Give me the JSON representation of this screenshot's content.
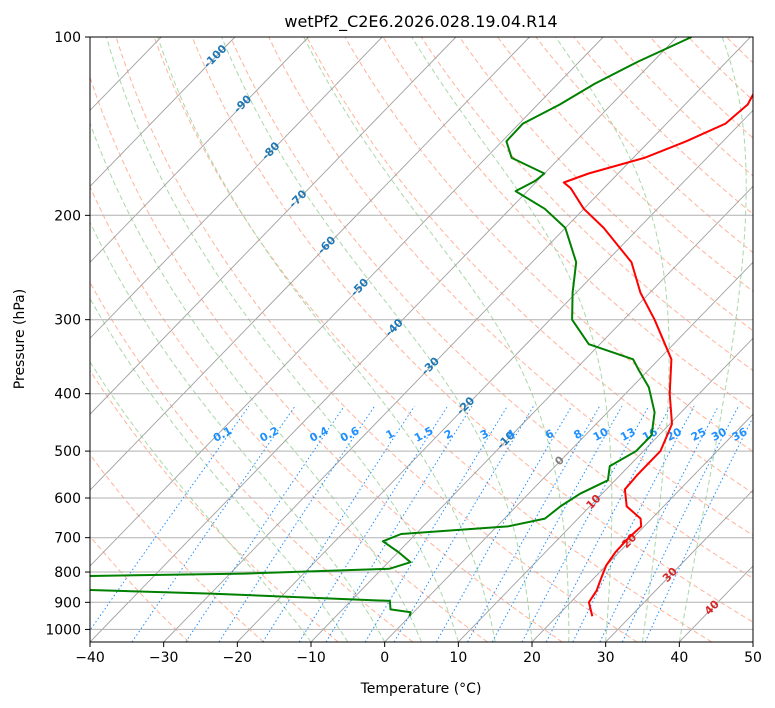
{
  "chart_data": {
    "type": "line",
    "title": "wetPf2_C2E6.2026.028.19.04.R14",
    "xlabel": "Temperature (°C)",
    "ylabel": "Pressure (hPa)",
    "xlim": [
      -40,
      50
    ],
    "ylim": [
      1050,
      100
    ],
    "y_scale": "log",
    "grid": true,
    "x_ticks": [
      "−40",
      "−30",
      "−20",
      "−10",
      "0",
      "10",
      "20",
      "30",
      "40",
      "50"
    ],
    "x_tick_values": [
      -40,
      -30,
      -20,
      -10,
      0,
      10,
      20,
      30,
      40,
      50
    ],
    "y_ticks": [
      "100",
      "200",
      "300",
      "400",
      "500",
      "600",
      "700",
      "800",
      "900",
      "1000"
    ],
    "y_tick_values": [
      100,
      200,
      300,
      400,
      500,
      600,
      700,
      800,
      900,
      1000
    ],
    "isotherm_labels": [
      {
        "text": "-100",
        "value": -100
      },
      {
        "text": "-90",
        "value": -90
      },
      {
        "text": "-80",
        "value": -80
      },
      {
        "text": "-70",
        "value": -70
      },
      {
        "text": "-60",
        "value": -60
      },
      {
        "text": "-50",
        "value": -50
      },
      {
        "text": "-40",
        "value": -40
      },
      {
        "text": "-30",
        "value": -30
      },
      {
        "text": "-20",
        "value": -20
      },
      {
        "text": "-10",
        "value": -10
      },
      {
        "text": "0",
        "value": 0
      },
      {
        "text": "10",
        "value": 10
      },
      {
        "text": "20",
        "value": 20
      },
      {
        "text": "30",
        "value": 30
      },
      {
        "text": "40",
        "value": 40
      }
    ],
    "mixing_ratio_labels": [
      "0.1",
      "0.2",
      "0.4",
      "0.6",
      "1",
      "1.5",
      "2",
      "3",
      "4",
      "6",
      "8",
      "10",
      "13",
      "16",
      "20",
      "25",
      "30",
      "36"
    ],
    "mixing_ratio_values": [
      0.1,
      0.2,
      0.4,
      0.6,
      1,
      1.5,
      2,
      3,
      4,
      6,
      8,
      10,
      13,
      16,
      20,
      25,
      30,
      36
    ],
    "colors": {
      "temperature": "#ff0000",
      "dewpoint": "#008000",
      "isotherm": "#a0a0a0",
      "dry_adiabat": "#ffb39a",
      "moist_adiabat": "#a8d8a8",
      "mixing_ratio": "#1e90ff",
      "isotherm_label_cold": "#1f77b4",
      "isotherm_label_zero": "#808080",
      "isotherm_label_warm": "#d62728"
    },
    "series": [
      {
        "key": "temperature",
        "points": [
          {
            "p": 950,
            "t": 24.8
          },
          {
            "p": 900,
            "t": 22.5
          },
          {
            "p": 860,
            "t": 22.0
          },
          {
            "p": 820,
            "t": 21.0
          },
          {
            "p": 780,
            "t": 20.0
          },
          {
            "p": 740,
            "t": 19.5
          },
          {
            "p": 700,
            "t": 19.4
          },
          {
            "p": 670,
            "t": 19.6
          },
          {
            "p": 650,
            "t": 18.5
          },
          {
            "p": 620,
            "t": 15.0
          },
          {
            "p": 580,
            "t": 12.5
          },
          {
            "p": 550,
            "t": 12.3
          },
          {
            "p": 500,
            "t": 12.3
          },
          {
            "p": 450,
            "t": 10.3
          },
          {
            "p": 400,
            "t": 6.0
          },
          {
            "p": 350,
            "t": 1.7
          },
          {
            "p": 300,
            "t": -5.8
          },
          {
            "p": 270,
            "t": -11.3
          },
          {
            "p": 240,
            "t": -16.5
          },
          {
            "p": 210,
            "t": -24.8
          },
          {
            "p": 195,
            "t": -30.0
          },
          {
            "p": 180,
            "t": -34.5
          },
          {
            "p": 176,
            "t": -36.2
          },
          {
            "p": 170,
            "t": -34.0
          },
          {
            "p": 160,
            "t": -28.5
          },
          {
            "p": 150,
            "t": -25.0
          },
          {
            "p": 140,
            "t": -22.0
          },
          {
            "p": 130,
            "t": -21.5
          },
          {
            "p": 120,
            "t": -22.7
          },
          {
            "p": 110,
            "t": -24.5
          },
          {
            "p": 103,
            "t": -24.6
          },
          {
            "p": 100,
            "t": -23.4
          }
        ]
      },
      {
        "key": "dewpoint",
        "points": [
          {
            "p": 950,
            "t": 0.0
          },
          {
            "p": 935,
            "t": -0.4
          },
          {
            "p": 925,
            "t": -3.5
          },
          {
            "p": 905,
            "t": -4.3
          },
          {
            "p": 895,
            "t": -4.7
          },
          {
            "p": 870,
            "t": -30.0
          },
          {
            "p": 840,
            "t": -72.0
          },
          {
            "p": 820,
            "t": -70.0
          },
          {
            "p": 805,
            "t": -28.0
          },
          {
            "p": 790,
            "t": -9.0
          },
          {
            "p": 770,
            "t": -7.0
          },
          {
            "p": 740,
            "t": -10.0
          },
          {
            "p": 710,
            "t": -13.5
          },
          {
            "p": 690,
            "t": -12.0
          },
          {
            "p": 670,
            "t": 1.5
          },
          {
            "p": 650,
            "t": 5.5
          },
          {
            "p": 620,
            "t": 6.0
          },
          {
            "p": 590,
            "t": 7.0
          },
          {
            "p": 560,
            "t": 9.0
          },
          {
            "p": 530,
            "t": 7.4
          },
          {
            "p": 500,
            "t": 9.0
          },
          {
            "p": 470,
            "t": 9.0
          },
          {
            "p": 430,
            "t": 6.4
          },
          {
            "p": 390,
            "t": 2.3
          },
          {
            "p": 365,
            "t": -1.3
          },
          {
            "p": 350,
            "t": -3.5
          },
          {
            "p": 330,
            "t": -11.5
          },
          {
            "p": 300,
            "t": -17.0
          },
          {
            "p": 270,
            "t": -20.5
          },
          {
            "p": 240,
            "t": -24.0
          },
          {
            "p": 210,
            "t": -30.0
          },
          {
            "p": 195,
            "t": -35.3
          },
          {
            "p": 182,
            "t": -41.6
          },
          {
            "p": 175,
            "t": -40.3
          },
          {
            "p": 170,
            "t": -40.0
          },
          {
            "p": 160,
            "t": -46.5
          },
          {
            "p": 150,
            "t": -49.4
          },
          {
            "p": 140,
            "t": -49.5
          },
          {
            "p": 130,
            "t": -47.0
          },
          {
            "p": 120,
            "t": -45.0
          },
          {
            "p": 110,
            "t": -42.0
          },
          {
            "p": 100,
            "t": -38.0
          }
        ]
      }
    ]
  }
}
